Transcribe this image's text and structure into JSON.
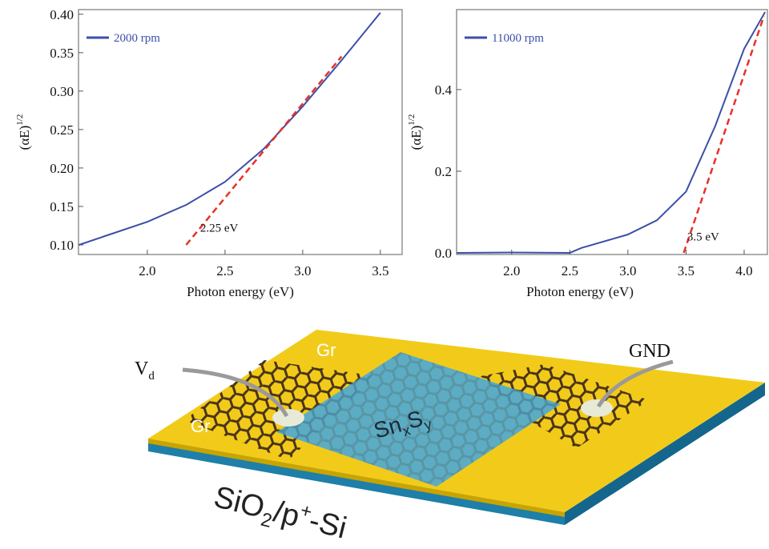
{
  "chart_data": [
    {
      "type": "line",
      "xlabel": "Photon energy (eV)",
      "ylabel": "(αE)",
      "ylabel_sup": "1/2",
      "xlim": [
        1.557,
        3.64
      ],
      "ylim": [
        0.0875,
        0.406
      ],
      "xticks": [
        {
          "value": 2,
          "label": "2.0"
        },
        2.5,
        {
          "value": 3,
          "label": "3.0"
        },
        3.5
      ],
      "yticks": [
        {
          "value": 0.1,
          "label": "0.10"
        },
        0.15,
        {
          "value": 0.2,
          "label": "0.20"
        },
        0.25,
        {
          "value": 0.3,
          "label": "0.30"
        },
        0.35,
        {
          "value": 0.4,
          "label": "0.40"
        }
      ],
      "series": [
        {
          "name": "2000 rpm",
          "color": "#3b4fa8",
          "x": [
            1.56,
            1.75,
            2.0,
            2.25,
            2.5,
            2.75,
            3.0,
            3.25,
            3.5
          ],
          "values": [
            0.1,
            0.113,
            0.13,
            0.152,
            0.182,
            0.225,
            0.28,
            0.34,
            0.402
          ]
        }
      ],
      "fit": {
        "color": "#e8302a",
        "x": [
          2.25,
          3.25
        ],
        "values": [
          0.1,
          0.345
        ]
      },
      "annotation": {
        "text": "2.25 eV",
        "x": 2.34,
        "y": 0.117
      }
    },
    {
      "type": "line",
      "xlabel": "Photon energy (eV)",
      "ylabel": "(αE)",
      "ylabel_sup": "1/2",
      "xlim": [
        1.526,
        4.2
      ],
      "ylim": [
        -0.004,
        0.596
      ],
      "xticks": [
        {
          "value": 2,
          "label": "2.0"
        },
        2.5,
        {
          "value": 3,
          "label": "3.0"
        },
        3.5,
        {
          "value": 4,
          "label": "4.0"
        }
      ],
      "yticks": [
        {
          "value": 0,
          "label": "0.0"
        },
        0.2,
        0.4
      ],
      "series": [
        {
          "name": "11000 rpm",
          "color": "#3b4fa8",
          "x": [
            1.53,
            2.0,
            2.5,
            2.6,
            3.0,
            3.25,
            3.5,
            3.75,
            4.0,
            4.18
          ],
          "values": [
            0.0,
            0.001,
            0.0,
            0.012,
            0.045,
            0.08,
            0.15,
            0.31,
            0.5,
            0.59
          ]
        }
      ],
      "fit": {
        "color": "#e8302a",
        "x": [
          3.48,
          4.17
        ],
        "values": [
          0.0,
          0.58
        ]
      },
      "annotation": {
        "text": "3.5 eV",
        "x": 3.51,
        "y": 0.03
      }
    }
  ],
  "diagram": {
    "gr_top": "Gr",
    "gr_left": "Gr",
    "vd": {
      "main": "V",
      "sub": "d"
    },
    "gnd": "GND",
    "channel": {
      "a": "Sn",
      "a_sub": "x",
      "b": "S",
      "b_sub": "y"
    },
    "substrate": {
      "a": "SiO",
      "a_sub": "2",
      "b": "/p",
      "b_sup": "+",
      "c": "-Si"
    }
  }
}
